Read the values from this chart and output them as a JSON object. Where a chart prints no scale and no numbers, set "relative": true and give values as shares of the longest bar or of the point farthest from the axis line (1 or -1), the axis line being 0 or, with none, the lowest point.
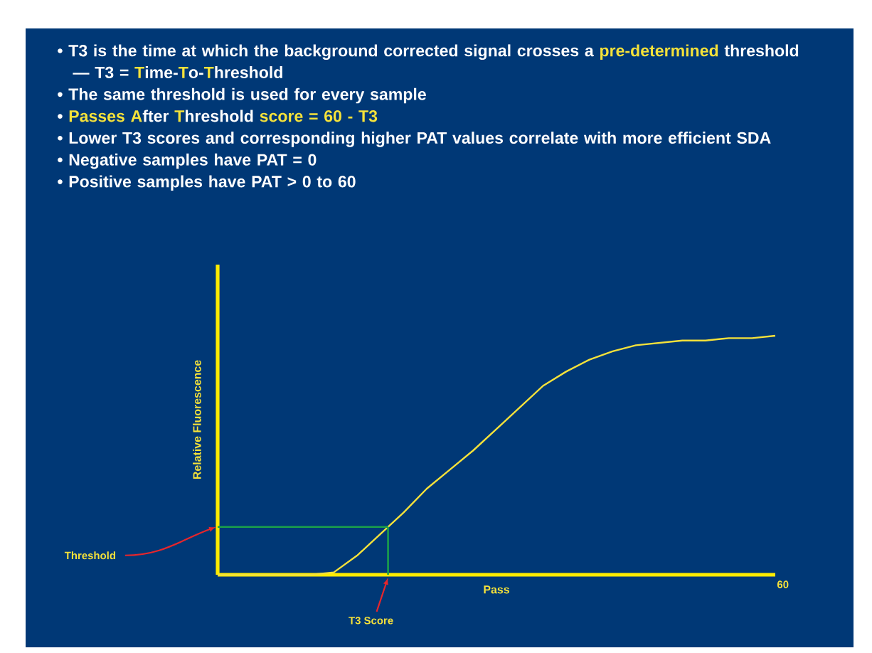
{
  "chart_data": {
    "type": "line",
    "relative": true,
    "annotations": [
      "• T3 is the time at which the background corrected signal crosses a **pre-determined** threshold — T3 = **T**ime-**T**o-**T**hreshold",
      "• The same threshold is used for every sample",
      "• **Passes A**fter **T**hreshold **score = 60 - T3**",
      "• Lower T3 scores and corresponding higher PAT values correlate with more efficient SDA",
      "• Negative samples have PAT = 0",
      "• Positive samples have PAT > 0 to 60",
      "T3 Score",
      "60"
    ],
    "xlabel": "Pass",
    "ylabel": "Relative Fluorescence",
    "categories": [
      null,
      null,
      null,
      null,
      null,
      null,
      null,
      null,
      null,
      null,
      null,
      null,
      null,
      null,
      null,
      null,
      null,
      null,
      null,
      null,
      null,
      null,
      null,
      null,
      null
    ],
    "series": [
      {
        "color": "#f5e23a",
        "values": [
          0,
          0,
          0,
          0,
          0,
          0.01,
          0.08,
          0.17,
          0.26,
          0.36,
          0.44,
          0.52,
          0.61,
          0.7,
          0.79,
          0.85,
          0.9,
          0.935,
          0.96,
          0.97,
          0.98,
          0.98,
          0.99,
          0.99,
          1
        ]
      }
    ],
    "ref_lines": [
      {
        "axis": "y",
        "value": 0.2,
        "label": "Threshold",
        "color": "#1aa04a"
      }
    ]
  }
}
